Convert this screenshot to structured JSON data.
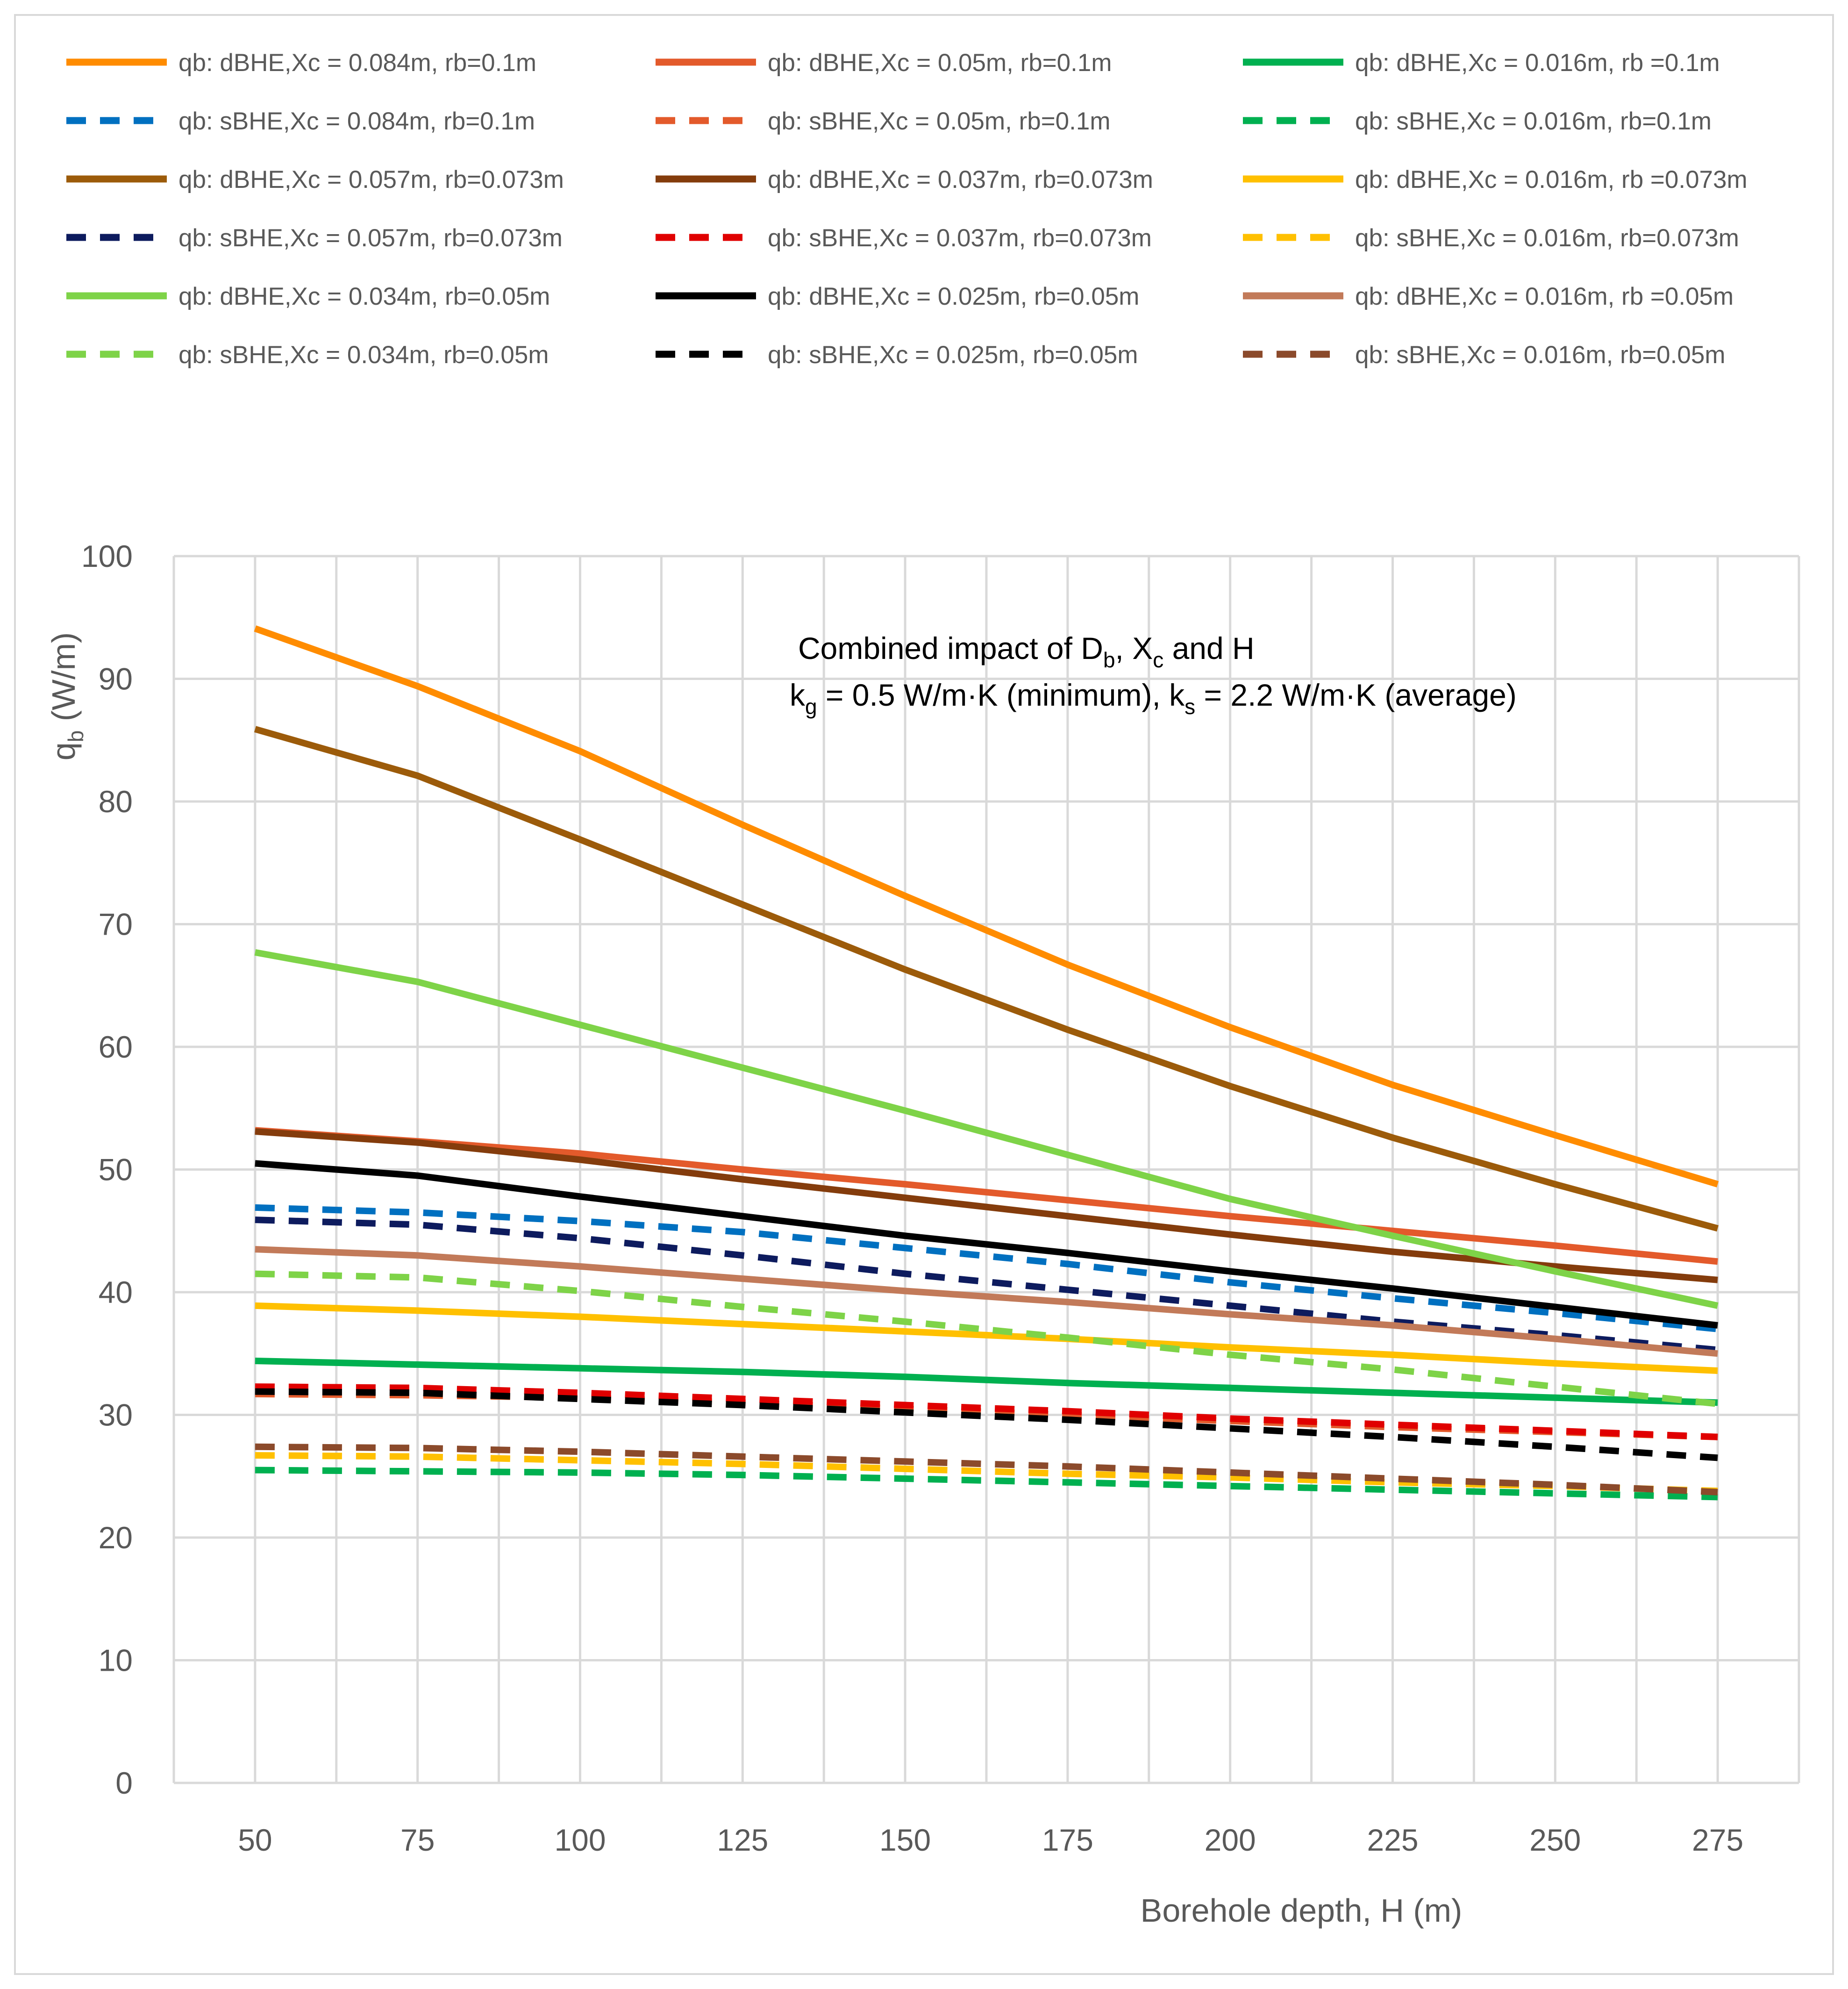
{
  "chart_data": {
    "type": "line",
    "title": "",
    "xlabel": "Borehole depth, H (m)",
    "ylabel": {
      "main": "q",
      "sub": "b",
      "unit": " (W/m)"
    },
    "x": [
      50,
      75,
      100,
      125,
      150,
      175,
      200,
      225,
      250,
      275
    ],
    "x_tick_labels": [
      "50",
      "75",
      "100",
      "125",
      "150",
      "175",
      "200",
      "225",
      "250",
      "275"
    ],
    "xlim": [
      37.5,
      287.5
    ],
    "ylim": [
      0,
      100
    ],
    "y_ticks": [
      0,
      10,
      20,
      30,
      40,
      50,
      60,
      70,
      80,
      90,
      100
    ],
    "y_tick_labels": [
      "0",
      "10",
      "20",
      "30",
      "40",
      "50",
      "60",
      "70",
      "80",
      "90",
      "100"
    ],
    "grid": "vertical and horizontal",
    "legend_position": "top",
    "annotation": {
      "line1_parts": [
        "Combined impact of D",
        "b",
        ", X",
        "c",
        "  and H"
      ],
      "line2_parts": [
        "k",
        "g",
        " = 0.5 W/m·K (minimum), k",
        "s",
        " = 2.2 W/m·K (average)"
      ]
    },
    "series": [
      {
        "name": "qb: dBHE,Xc = 0.084m, rb=0.1m",
        "color": "#ff8c00",
        "dash": "solid",
        "values": [
          94.1,
          89.4,
          84.1,
          78.1,
          72.3,
          66.7,
          61.6,
          56.9,
          52.8,
          48.8
        ]
      },
      {
        "name": "qb: dBHE,Xc = 0.05m, rb=0.1m",
        "color": "#e35a2b",
        "dash": "solid",
        "values": [
          53.2,
          52.3,
          51.3,
          50.0,
          48.8,
          47.5,
          46.2,
          45.0,
          43.8,
          42.5
        ]
      },
      {
        "name": "qb: dBHE,Xc = 0.016m, rb =0.1m",
        "color": "#00b050",
        "dash": "solid",
        "values": [
          34.4,
          34.1,
          33.8,
          33.5,
          33.1,
          32.6,
          32.2,
          31.8,
          31.4,
          31.0
        ]
      },
      {
        "name": "qb: sBHE,Xc = 0.084m, rb=0.1m",
        "color": "#0070c0",
        "dash": "dashed",
        "values": [
          46.9,
          46.5,
          45.8,
          44.9,
          43.6,
          42.3,
          40.8,
          39.5,
          38.3,
          37.0
        ]
      },
      {
        "name": "qb: sBHE,Xc = 0.05m, rb=0.1m",
        "color": "#e35a2b",
        "dash": "dashed",
        "values": [
          31.7,
          31.6,
          31.4,
          31.0,
          30.5,
          30.0,
          29.5,
          29.0,
          28.6,
          28.2
        ]
      },
      {
        "name": "qb: sBHE,Xc = 0.016m, rb=0.1m",
        "color": "#00b050",
        "dash": "dashed",
        "values": [
          25.5,
          25.4,
          25.3,
          25.1,
          24.8,
          24.5,
          24.2,
          23.9,
          23.6,
          23.3
        ]
      },
      {
        "name": "qb: dBHE,Xc = 0.057m, rb=0.073m",
        "color": "#9c5b0a",
        "dash": "solid",
        "values": [
          85.9,
          82.1,
          76.9,
          71.6,
          66.3,
          61.4,
          56.8,
          52.6,
          48.8,
          45.2
        ]
      },
      {
        "name": "qb: dBHE,Xc = 0.037m, rb=0.073m",
        "color": "#843c0c",
        "dash": "solid",
        "values": [
          53.1,
          52.2,
          50.8,
          49.2,
          47.7,
          46.2,
          44.7,
          43.3,
          42.1,
          41.0
        ]
      },
      {
        "name": "qb: dBHE,Xc = 0.016m, rb =0.073m",
        "color": "#ffc000",
        "dash": "solid",
        "values": [
          38.9,
          38.5,
          38.0,
          37.4,
          36.8,
          36.2,
          35.5,
          34.9,
          34.2,
          33.6
        ]
      },
      {
        "name": "qb: sBHE,Xc = 0.057m, rb=0.073m",
        "color": "#0d1b5e",
        "dash": "dashed",
        "values": [
          45.9,
          45.5,
          44.4,
          43.0,
          41.5,
          40.2,
          38.9,
          37.6,
          36.5,
          35.3
        ]
      },
      {
        "name": "qb: sBHE,Xc = 0.037m, rb=0.073m",
        "color": "#e00000",
        "dash": "dashed",
        "values": [
          32.3,
          32.2,
          31.8,
          31.3,
          30.8,
          30.3,
          29.7,
          29.2,
          28.7,
          28.2
        ]
      },
      {
        "name": "qb: sBHE,Xc = 0.016m, rb=0.073m",
        "color": "#ffc000",
        "dash": "dashed",
        "values": [
          26.7,
          26.6,
          26.3,
          26.0,
          25.6,
          25.2,
          24.9,
          24.5,
          24.2,
          23.8
        ]
      },
      {
        "name": "qb: dBHE,Xc = 0.034m, rb=0.05m",
        "color": "#7ed348",
        "dash": "solid",
        "values": [
          67.7,
          65.3,
          61.8,
          58.3,
          54.8,
          51.2,
          47.6,
          44.6,
          41.7,
          38.9
        ]
      },
      {
        "name": "qb: dBHE,Xc = 0.025m, rb=0.05m",
        "color": "#000000",
        "dash": "solid",
        "values": [
          50.5,
          49.5,
          47.8,
          46.2,
          44.6,
          43.2,
          41.7,
          40.3,
          38.8,
          37.3
        ]
      },
      {
        "name": "qb: dBHE,Xc = 0.016m, rb =0.05m",
        "color": "#c27a59",
        "dash": "solid",
        "values": [
          43.5,
          43.0,
          42.1,
          41.1,
          40.1,
          39.2,
          38.2,
          37.3,
          36.2,
          35.0
        ]
      },
      {
        "name": "qb: sBHE,Xc = 0.034m, rb=0.05m",
        "color": "#7ed348",
        "dash": "dashed",
        "values": [
          41.5,
          41.2,
          40.1,
          38.8,
          37.6,
          36.3,
          34.9,
          33.7,
          32.3,
          30.9
        ]
      },
      {
        "name": "qb: sBHE,Xc = 0.025m, rb=0.05m",
        "color": "#000000",
        "dash": "dashed",
        "values": [
          31.9,
          31.8,
          31.3,
          30.8,
          30.2,
          29.6,
          28.9,
          28.2,
          27.4,
          26.5
        ]
      },
      {
        "name": "qb: sBHE,Xc = 0.016m, rb=0.05m",
        "color": "#8b4a2b",
        "dash": "dashed",
        "values": [
          27.4,
          27.3,
          27.0,
          26.6,
          26.2,
          25.8,
          25.3,
          24.8,
          24.3,
          23.7
        ]
      }
    ]
  },
  "colors": {
    "grid": "#d9d9d9",
    "axis_text": "#595959",
    "frame": "#d9d9d9",
    "background": "#ffffff"
  }
}
